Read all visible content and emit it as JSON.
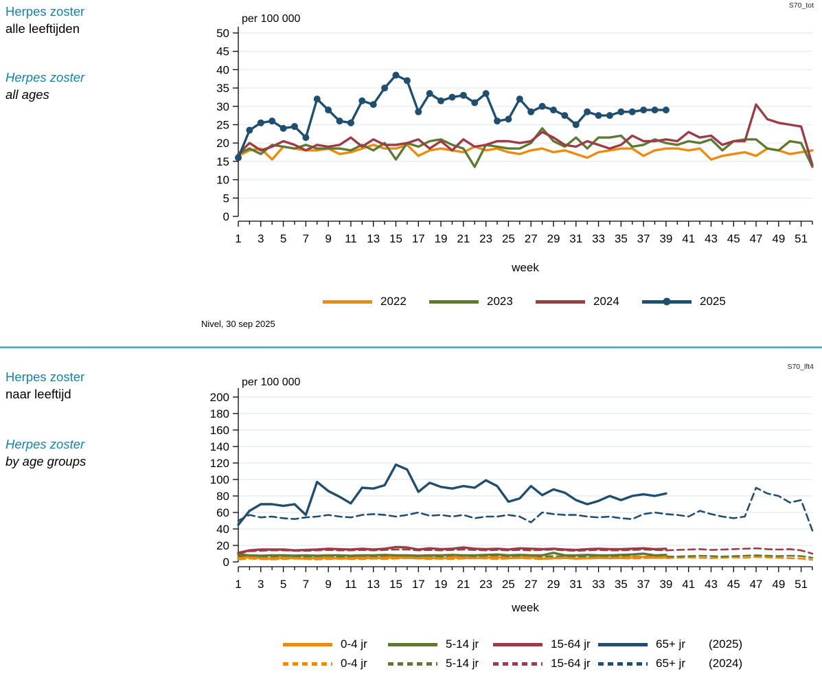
{
  "source_note": "Nivel, 30 sep 2025",
  "sections": [
    {
      "corner_tag": "S70_tot",
      "title_nl": [
        "Herpes zoster",
        "alle leeftijden"
      ],
      "title_en": [
        "Herpes zoster",
        "all ages"
      ]
    },
    {
      "corner_tag": "S70_lft4",
      "title_nl": [
        "Herpes zoster",
        "naar leeftijd"
      ],
      "title_en": [
        "Herpes zoster",
        "by age groups"
      ]
    }
  ],
  "colors": {
    "orange": "#EE8A0D",
    "green": "#5E7A31",
    "maroon": "#9C3C46",
    "navy": "#1F4E6F",
    "teal_heading": "#1583A8",
    "divider": "#3E8FB0",
    "gridline": "#E8EDF2"
  },
  "chart_data": [
    {
      "type": "line",
      "title": "Herpes zoster alle leeftijden",
      "unit_label": "per 100 000",
      "xlabel": "week",
      "x_range": [
        1,
        52
      ],
      "xticks_labeled": [
        1,
        3,
        5,
        7,
        9,
        11,
        13,
        15,
        17,
        19,
        21,
        23,
        25,
        27,
        29,
        31,
        33,
        35,
        37,
        39,
        41,
        43,
        45,
        47,
        49,
        51
      ],
      "ylim": [
        0,
        50
      ],
      "yticks": [
        0,
        5,
        10,
        15,
        20,
        25,
        30,
        35,
        40,
        45,
        50
      ],
      "grid": true,
      "series": [
        {
          "name": "2022",
          "color": "#EE8A0D",
          "style": "solid",
          "values": [
            16.5,
            18,
            18.5,
            15.5,
            19,
            18.5,
            18,
            18,
            18.5,
            17,
            17.5,
            18.5,
            19.5,
            18.5,
            18.5,
            19.5,
            16.5,
            18,
            18.5,
            18,
            17.5,
            19,
            18,
            18.5,
            17.5,
            17,
            18,
            18.5,
            17.5,
            18,
            17,
            16,
            17.5,
            18,
            18.5,
            18.5,
            16.5,
            18,
            18.5,
            18.5,
            18,
            18.5,
            15.5,
            16.5,
            17,
            17.5,
            16.5,
            18.5,
            18,
            17,
            17.5,
            18
          ]
        },
        {
          "name": "2023",
          "color": "#5E7A31",
          "style": "solid",
          "values": [
            17,
            18.5,
            17,
            19.5,
            19,
            18.5,
            19.5,
            18.5,
            18.5,
            18.5,
            18,
            19.5,
            18,
            20,
            15.5,
            20,
            19,
            20.5,
            21,
            19.5,
            18.5,
            13.5,
            19.5,
            19,
            18.5,
            18.5,
            20,
            24,
            20.5,
            19,
            21.5,
            18.5,
            21.5,
            21.5,
            22,
            19,
            19.5,
            21,
            20,
            19.5,
            20.5,
            20,
            21,
            18,
            20.5,
            21,
            21,
            18.5,
            18,
            20.5,
            20,
            13.5
          ]
        },
        {
          "name": "2024",
          "color": "#9C3C46",
          "style": "solid",
          "values": [
            17,
            20,
            18,
            19,
            20.5,
            19.5,
            18,
            19.5,
            19,
            19.5,
            21.5,
            19,
            21,
            19.5,
            19.5,
            20,
            21,
            18.5,
            20.5,
            18,
            21,
            19,
            19.5,
            20.5,
            20.5,
            20,
            20.5,
            23,
            21.5,
            19.5,
            19,
            20.5,
            19.5,
            18.5,
            19.5,
            22,
            20.5,
            20.5,
            21,
            20.5,
            23,
            21.5,
            22,
            19.5,
            20.5,
            20.5,
            30.5,
            26.5,
            25.5,
            25,
            24.5,
            14
          ]
        },
        {
          "name": "2025",
          "color": "#1F4E6F",
          "style": "solid",
          "marker": true,
          "values": [
            16,
            23.5,
            25.5,
            26,
            24,
            24.5,
            21.5,
            32,
            29,
            26,
            25.5,
            31.5,
            30.5,
            35,
            38.5,
            37,
            28.5,
            33.5,
            31.5,
            32.5,
            33,
            31,
            33.5,
            26,
            26.5,
            32,
            28.5,
            30,
            29,
            27.5,
            25,
            28.5,
            27.5,
            27.5,
            28.5,
            28.5,
            29,
            29,
            29
          ]
        }
      ],
      "legend": {
        "rows": [
          {
            "style": "solid",
            "items": [
              {
                "label": "2022",
                "color": "#EE8A0D"
              },
              {
                "label": "2023",
                "color": "#5E7A31"
              },
              {
                "label": "2024",
                "color": "#9C3C46"
              },
              {
                "label": "2025",
                "color": "#1F4E6F",
                "marker": true
              }
            ]
          }
        ]
      }
    },
    {
      "type": "line",
      "title": "Herpes zoster naar leeftijd",
      "unit_label": "per 100 000",
      "xlabel": "week",
      "x_range": [
        1,
        52
      ],
      "xticks_labeled": [
        1,
        3,
        5,
        7,
        9,
        11,
        13,
        15,
        17,
        19,
        21,
        23,
        25,
        27,
        29,
        31,
        33,
        35,
        37,
        39,
        41,
        43,
        45,
        47,
        49,
        51
      ],
      "ylim": [
        0,
        200
      ],
      "yticks": [
        0,
        20,
        40,
        60,
        80,
        100,
        120,
        140,
        160,
        180,
        200
      ],
      "grid": true,
      "series": [
        {
          "name": "0-4 jr (2024)",
          "age_group": "0-4 jr",
          "year": "2024",
          "color": "#EE8A0D",
          "style": "dashed",
          "values": [
            3,
            4,
            3.5,
            3,
            3.5,
            4,
            3.5,
            3,
            3.5,
            4,
            3.5,
            3.5,
            4,
            3.5,
            4,
            4.5,
            4,
            3.5,
            4,
            3.5,
            4,
            4.5,
            4,
            3.5,
            4,
            4.5,
            4,
            3.5,
            4,
            4.5,
            4,
            4,
            4.5,
            5,
            4.5,
            4,
            4.5,
            5,
            4.5,
            5,
            5.5,
            5,
            4.5,
            5,
            5.5,
            5,
            6,
            5.5,
            5,
            4.5,
            4,
            2.5
          ]
        },
        {
          "name": "5-14 jr (2024)",
          "age_group": "5-14 jr",
          "year": "2024",
          "color": "#5E7A31",
          "style": "dashed",
          "values": [
            7,
            6,
            6.5,
            6,
            6,
            6.5,
            6,
            6,
            6.5,
            6,
            6.5,
            6,
            6.5,
            7,
            6.5,
            6,
            6.5,
            7,
            6.5,
            6,
            6.5,
            6,
            6.5,
            7,
            6.5,
            6.5,
            6,
            6.5,
            7,
            6.5,
            6,
            6.5,
            6,
            6.5,
            7,
            6.5,
            6.5,
            7,
            6.5,
            6.5,
            7,
            7.5,
            7,
            6.5,
            7,
            7.5,
            8,
            7.5,
            7,
            7.5,
            7,
            5
          ]
        },
        {
          "name": "15-64 jr (2024)",
          "age_group": "15-64 jr",
          "year": "2024",
          "color": "#9C3C46",
          "style": "dashed",
          "values": [
            10,
            13,
            13.5,
            14,
            14,
            13.5,
            13.5,
            14,
            14.5,
            14,
            14,
            14.5,
            14,
            14.5,
            15,
            15,
            14,
            14.5,
            14,
            14.5,
            15,
            14.5,
            14,
            14.5,
            14,
            14.5,
            14,
            14.5,
            15,
            14,
            13.5,
            14,
            14.5,
            14,
            14,
            14.5,
            15,
            14.5,
            14,
            14.5,
            15,
            15.5,
            14.5,
            15,
            15.5,
            16,
            16.5,
            15.5,
            15,
            15.5,
            14,
            10
          ]
        },
        {
          "name": "65+ jr (2024)",
          "age_group": "65+ jr",
          "year": "2024",
          "color": "#1F4E6F",
          "style": "dashed",
          "values": [
            50,
            57,
            54,
            55,
            53,
            52,
            54,
            55,
            57,
            55,
            54,
            57,
            58,
            57,
            55,
            57,
            60,
            56,
            57,
            55,
            57,
            53,
            55,
            55,
            57,
            55,
            48,
            60,
            58,
            57,
            57,
            55,
            54,
            55,
            53,
            52,
            58,
            60,
            58,
            57,
            55,
            62,
            58,
            55,
            53,
            55,
            90,
            83,
            80,
            72,
            75,
            38
          ]
        },
        {
          "name": "0-4 jr (2025)",
          "age_group": "0-4 jr",
          "year": "2025",
          "color": "#EE8A0D",
          "style": "solid",
          "values": [
            4,
            6,
            4.5,
            4,
            5,
            4.5,
            4,
            4.5,
            5,
            4,
            4.5,
            5,
            4.5,
            5,
            5.5,
            5,
            4.5,
            5,
            4,
            5.5,
            5,
            4.5,
            5,
            5.5,
            4.5,
            5,
            5.5,
            4,
            4.5,
            5,
            4,
            4.5,
            5,
            4.5,
            5,
            5.5,
            6,
            5,
            5.5
          ]
        },
        {
          "name": "5-14 jr (2025)",
          "age_group": "5-14 jr",
          "year": "2025",
          "color": "#5E7A31",
          "style": "solid",
          "values": [
            9,
            8,
            7.5,
            8,
            8,
            7.5,
            8,
            7.5,
            8,
            8,
            7.5,
            8,
            8,
            8.5,
            8,
            8,
            7.5,
            8,
            8,
            8.5,
            8,
            8,
            8.5,
            9,
            8,
            8.5,
            8,
            8,
            11,
            8,
            8,
            8.5,
            8,
            8,
            8.5,
            9,
            10,
            8,
            8.5
          ]
        },
        {
          "name": "15-64 jr (2025)",
          "age_group": "15-64 jr",
          "year": "2025",
          "color": "#9C3C46",
          "style": "solid",
          "values": [
            11,
            14,
            15,
            15,
            15,
            14,
            14.5,
            15,
            16,
            15.5,
            15,
            16,
            15,
            16,
            18,
            17.5,
            15,
            16.5,
            15.5,
            16,
            17.5,
            16,
            15.5,
            16,
            15,
            16.5,
            16,
            15.5,
            16,
            15,
            14.5,
            15.5,
            16,
            15.5,
            15.5,
            16,
            16.5,
            15.5,
            16
          ]
        },
        {
          "name": "65+ jr (2025)",
          "age_group": "65+ jr",
          "year": "2025",
          "color": "#1F4E6F",
          "style": "solid",
          "values": [
            45,
            62,
            70,
            70,
            68,
            70,
            57,
            97,
            86,
            79,
            71,
            90,
            89,
            93,
            118,
            112,
            85,
            96,
            91,
            89,
            92,
            90,
            99,
            92,
            73,
            77,
            92,
            81,
            88,
            84,
            75,
            70,
            74,
            80,
            75,
            80,
            82,
            80,
            83
          ]
        }
      ],
      "legend": {
        "rows": [
          {
            "style": "solid",
            "suffix": "(2025)",
            "items": [
              {
                "label": "0-4 jr",
                "color": "#EE8A0D"
              },
              {
                "label": "5-14 jr",
                "color": "#5E7A31"
              },
              {
                "label": "15-64 jr",
                "color": "#9C3C46"
              },
              {
                "label": "65+ jr",
                "color": "#1F4E6F"
              }
            ]
          },
          {
            "style": "dashed",
            "suffix": "(2024)",
            "items": [
              {
                "label": "0-4 jr",
                "color": "#EE8A0D"
              },
              {
                "label": "5-14 jr",
                "color": "#5E7A31"
              },
              {
                "label": "15-64 jr",
                "color": "#9C3C46"
              },
              {
                "label": "65+ jr",
                "color": "#1F4E6F"
              }
            ]
          }
        ]
      }
    }
  ]
}
